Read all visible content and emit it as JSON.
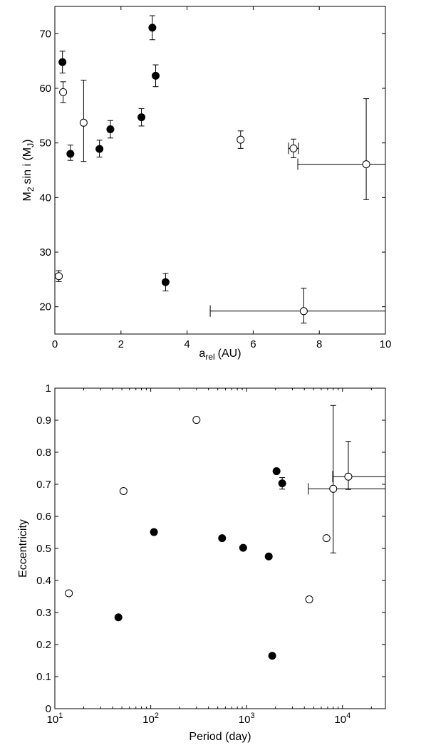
{
  "chart_data": [
    {
      "type": "scatter",
      "title": "",
      "xlabel": "a",
      "xlabel_sub": "rel",
      "xlabel_unit": "(AU)",
      "ylabel": "M",
      "ylabel_sub": "2",
      "ylabel_mid": "sin i (M",
      "ylabel_sub2": "J",
      "ylabel_end": ")",
      "xlim": [
        0,
        10
      ],
      "ylim": [
        15,
        75
      ],
      "xticks": [
        0,
        2,
        4,
        6,
        8,
        10
      ],
      "yticks": [
        20,
        30,
        40,
        50,
        60,
        70
      ],
      "xtick_labels": [
        "0",
        "2",
        "4",
        "6",
        "8",
        "10"
      ],
      "ytick_labels": [
        "20",
        "30",
        "40",
        "50",
        "60",
        "70"
      ],
      "grid": false,
      "series": [
        {
          "marker": "filled-circle",
          "points": [
            {
              "x": 0.23,
              "y": 64.8,
              "yerr_lo": 2.0,
              "yerr_hi": 2.0
            },
            {
              "x": 0.47,
              "y": 48.0,
              "yerr_lo": 1.2,
              "yerr_hi": 1.6
            },
            {
              "x": 1.35,
              "y": 48.9,
              "yerr_lo": 1.5,
              "yerr_hi": 1.6
            },
            {
              "x": 1.68,
              "y": 52.5,
              "yerr_lo": 1.6,
              "yerr_hi": 1.6
            },
            {
              "x": 2.62,
              "y": 54.7,
              "yerr_lo": 1.6,
              "yerr_hi": 1.6
            },
            {
              "x": 2.95,
              "y": 71.1,
              "yerr_lo": 2.2,
              "yerr_hi": 2.2
            },
            {
              "x": 3.05,
              "y": 62.3,
              "yerr_lo": 2.0,
              "yerr_hi": 2.0
            },
            {
              "x": 3.35,
              "y": 24.5,
              "yerr_lo": 1.6,
              "yerr_hi": 1.6
            }
          ]
        },
        {
          "marker": "open-circle",
          "points": [
            {
              "x": 0.12,
              "y": 25.6,
              "yerr_lo": 1.0,
              "yerr_hi": 1.0
            },
            {
              "x": 0.25,
              "y": 59.3,
              "yerr_lo": 1.9,
              "yerr_hi": 1.9
            },
            {
              "x": 0.87,
              "y": 53.7,
              "yerr_lo": 7.1,
              "yerr_hi": 7.8
            },
            {
              "x": 5.62,
              "y": 50.6,
              "yerr_lo": 1.6,
              "yerr_hi": 1.6
            },
            {
              "x": 7.22,
              "y": 49.0,
              "yerr_lo": 1.7,
              "yerr_hi": 1.7,
              "xerr_lo": 0.15,
              "xerr_hi": 0.15
            },
            {
              "x": 9.42,
              "y": 46.1,
              "yerr_lo": 6.5,
              "yerr_hi": 12.0,
              "xerr_lo": 2.07,
              "xerr_hi": 0.58
            },
            {
              "x": 7.53,
              "y": 19.2,
              "yerr_lo": 2.2,
              "yerr_hi": 4.2,
              "xerr_lo": 2.83,
              "xerr_hi": 2.47
            }
          ]
        }
      ]
    },
    {
      "type": "scatter",
      "title": "",
      "xlabel": "Period (day)",
      "ylabel": "Eccentricity",
      "xscale": "log",
      "xlim": [
        10,
        28000
      ],
      "ylim": [
        0,
        1
      ],
      "xticks": [
        10,
        100,
        1000,
        10000
      ],
      "xtick_base": "10",
      "xtick_exponents": [
        "1",
        "2",
        "3",
        "4"
      ],
      "yticks": [
        0,
        0.1,
        0.2,
        0.3,
        0.4,
        0.5,
        0.6,
        0.7,
        0.8,
        0.9,
        1
      ],
      "ytick_labels": [
        "0",
        "0.1",
        "0.2",
        "0.3",
        "0.4",
        "0.5",
        "0.6",
        "0.7",
        "0.8",
        "0.9",
        "1"
      ],
      "grid": false,
      "series": [
        {
          "marker": "filled-circle",
          "points": [
            {
              "x": 46,
              "y": 0.285
            },
            {
              "x": 108,
              "y": 0.551
            },
            {
              "x": 555,
              "y": 0.532
            },
            {
              "x": 920,
              "y": 0.502
            },
            {
              "x": 1700,
              "y": 0.475
            },
            {
              "x": 1850,
              "y": 0.165
            },
            {
              "x": 2050,
              "y": 0.741
            },
            {
              "x": 2350,
              "y": 0.703,
              "yerr_lo": 0.018,
              "yerr_hi": 0.018
            }
          ]
        },
        {
          "marker": "open-circle",
          "points": [
            {
              "x": 14,
              "y": 0.36
            },
            {
              "x": 52,
              "y": 0.679
            },
            {
              "x": 300,
              "y": 0.901
            },
            {
              "x": 4500,
              "y": 0.341
            },
            {
              "x": 6800,
              "y": 0.532
            },
            {
              "x": 8000,
              "y": 0.686,
              "yerr_lo": 0.2,
              "yerr_hi": 0.26,
              "xerr_lo": 3600,
              "xerr_hi": 20000
            },
            {
              "x": 11500,
              "y": 0.724,
              "yerr_lo": 0.04,
              "yerr_hi": 0.11,
              "xerr_lo": 3600,
              "xerr_hi": 16500
            }
          ]
        }
      ]
    }
  ]
}
